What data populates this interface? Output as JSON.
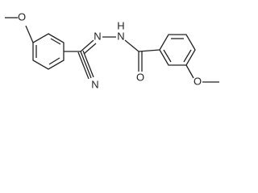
{
  "atoms": {
    "methoxy_left_o": "O",
    "imine_n": "N",
    "hydrazide_n": "N",
    "hydrazide_h": "H",
    "nitrile_n": "N",
    "carbonyl_o": "O",
    "methoxy_right_o": "O"
  }
}
